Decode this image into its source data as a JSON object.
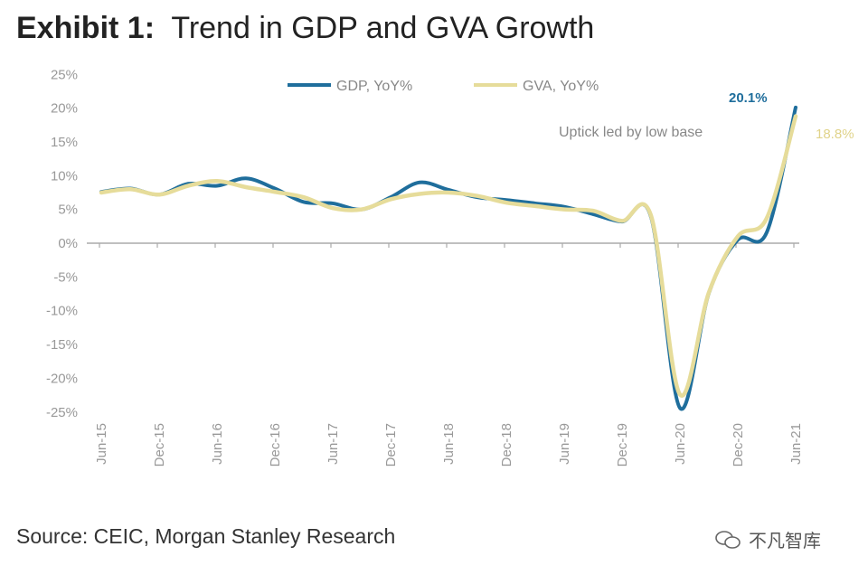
{
  "title_prefix": "Exhibit 1:",
  "title_main": "Trend in GDP and GVA Growth",
  "source": "Source: CEIC, Morgan Stanley Research",
  "watermark": "不凡智库",
  "chart_data": {
    "type": "line",
    "title": "Trend in GDP and GVA Growth",
    "xlabel": "",
    "ylabel": "",
    "ylim": [
      -25,
      25
    ],
    "yticks": [
      "25%",
      "20%",
      "15%",
      "10%",
      "5%",
      "0%",
      "-5%",
      "-10%",
      "-15%",
      "-20%",
      "-25%"
    ],
    "ytick_values": [
      25,
      20,
      15,
      10,
      5,
      0,
      -5,
      -10,
      -15,
      -20,
      -25
    ],
    "x": [
      "Jun-15",
      "Sep-15",
      "Dec-15",
      "Mar-16",
      "Jun-16",
      "Sep-16",
      "Dec-16",
      "Mar-17",
      "Jun-17",
      "Sep-17",
      "Dec-17",
      "Mar-18",
      "Jun-18",
      "Sep-18",
      "Dec-18",
      "Mar-19",
      "Jun-19",
      "Sep-19",
      "Dec-19",
      "Mar-20",
      "Jun-20",
      "Sep-20",
      "Dec-20",
      "Mar-21",
      "Jun-21"
    ],
    "xtick_labels": [
      "Jun-15",
      "Dec-15",
      "Jun-16",
      "Dec-16",
      "Jun-17",
      "Dec-17",
      "Jun-18",
      "Dec-18",
      "Jun-19",
      "Dec-19",
      "Jun-20",
      "Dec-20",
      "Jun-21"
    ],
    "series": [
      {
        "name": "GDP, YoY%",
        "color": "#1f6e9c",
        "values": [
          7.6,
          8.1,
          7.2,
          8.8,
          8.5,
          9.6,
          8.1,
          6.1,
          5.9,
          5.0,
          6.8,
          9.0,
          7.9,
          6.8,
          6.4,
          5.9,
          5.4,
          4.3,
          3.2,
          3.9,
          -24.4,
          -7.4,
          0.5,
          1.6,
          20.1
        ]
      },
      {
        "name": "GVA, YoY%",
        "color": "#e6dc9a",
        "values": [
          7.5,
          8.0,
          7.2,
          8.5,
          9.2,
          8.3,
          7.6,
          6.8,
          5.2,
          5.0,
          6.5,
          7.3,
          7.5,
          7.0,
          6.0,
          5.5,
          5.0,
          4.8,
          3.3,
          4.1,
          -22.4,
          -7.3,
          1.0,
          3.7,
          18.8
        ]
      }
    ],
    "legend": "top",
    "grid": false,
    "annotations": [
      {
        "text": "20.1%",
        "series": "GDP, YoY%",
        "color": "#1f6e9c"
      },
      {
        "text": "18.8%",
        "series": "GVA, YoY%",
        "color": "#e6dc9a"
      },
      {
        "text": "Uptick led by low base",
        "color": "#888888"
      }
    ]
  }
}
